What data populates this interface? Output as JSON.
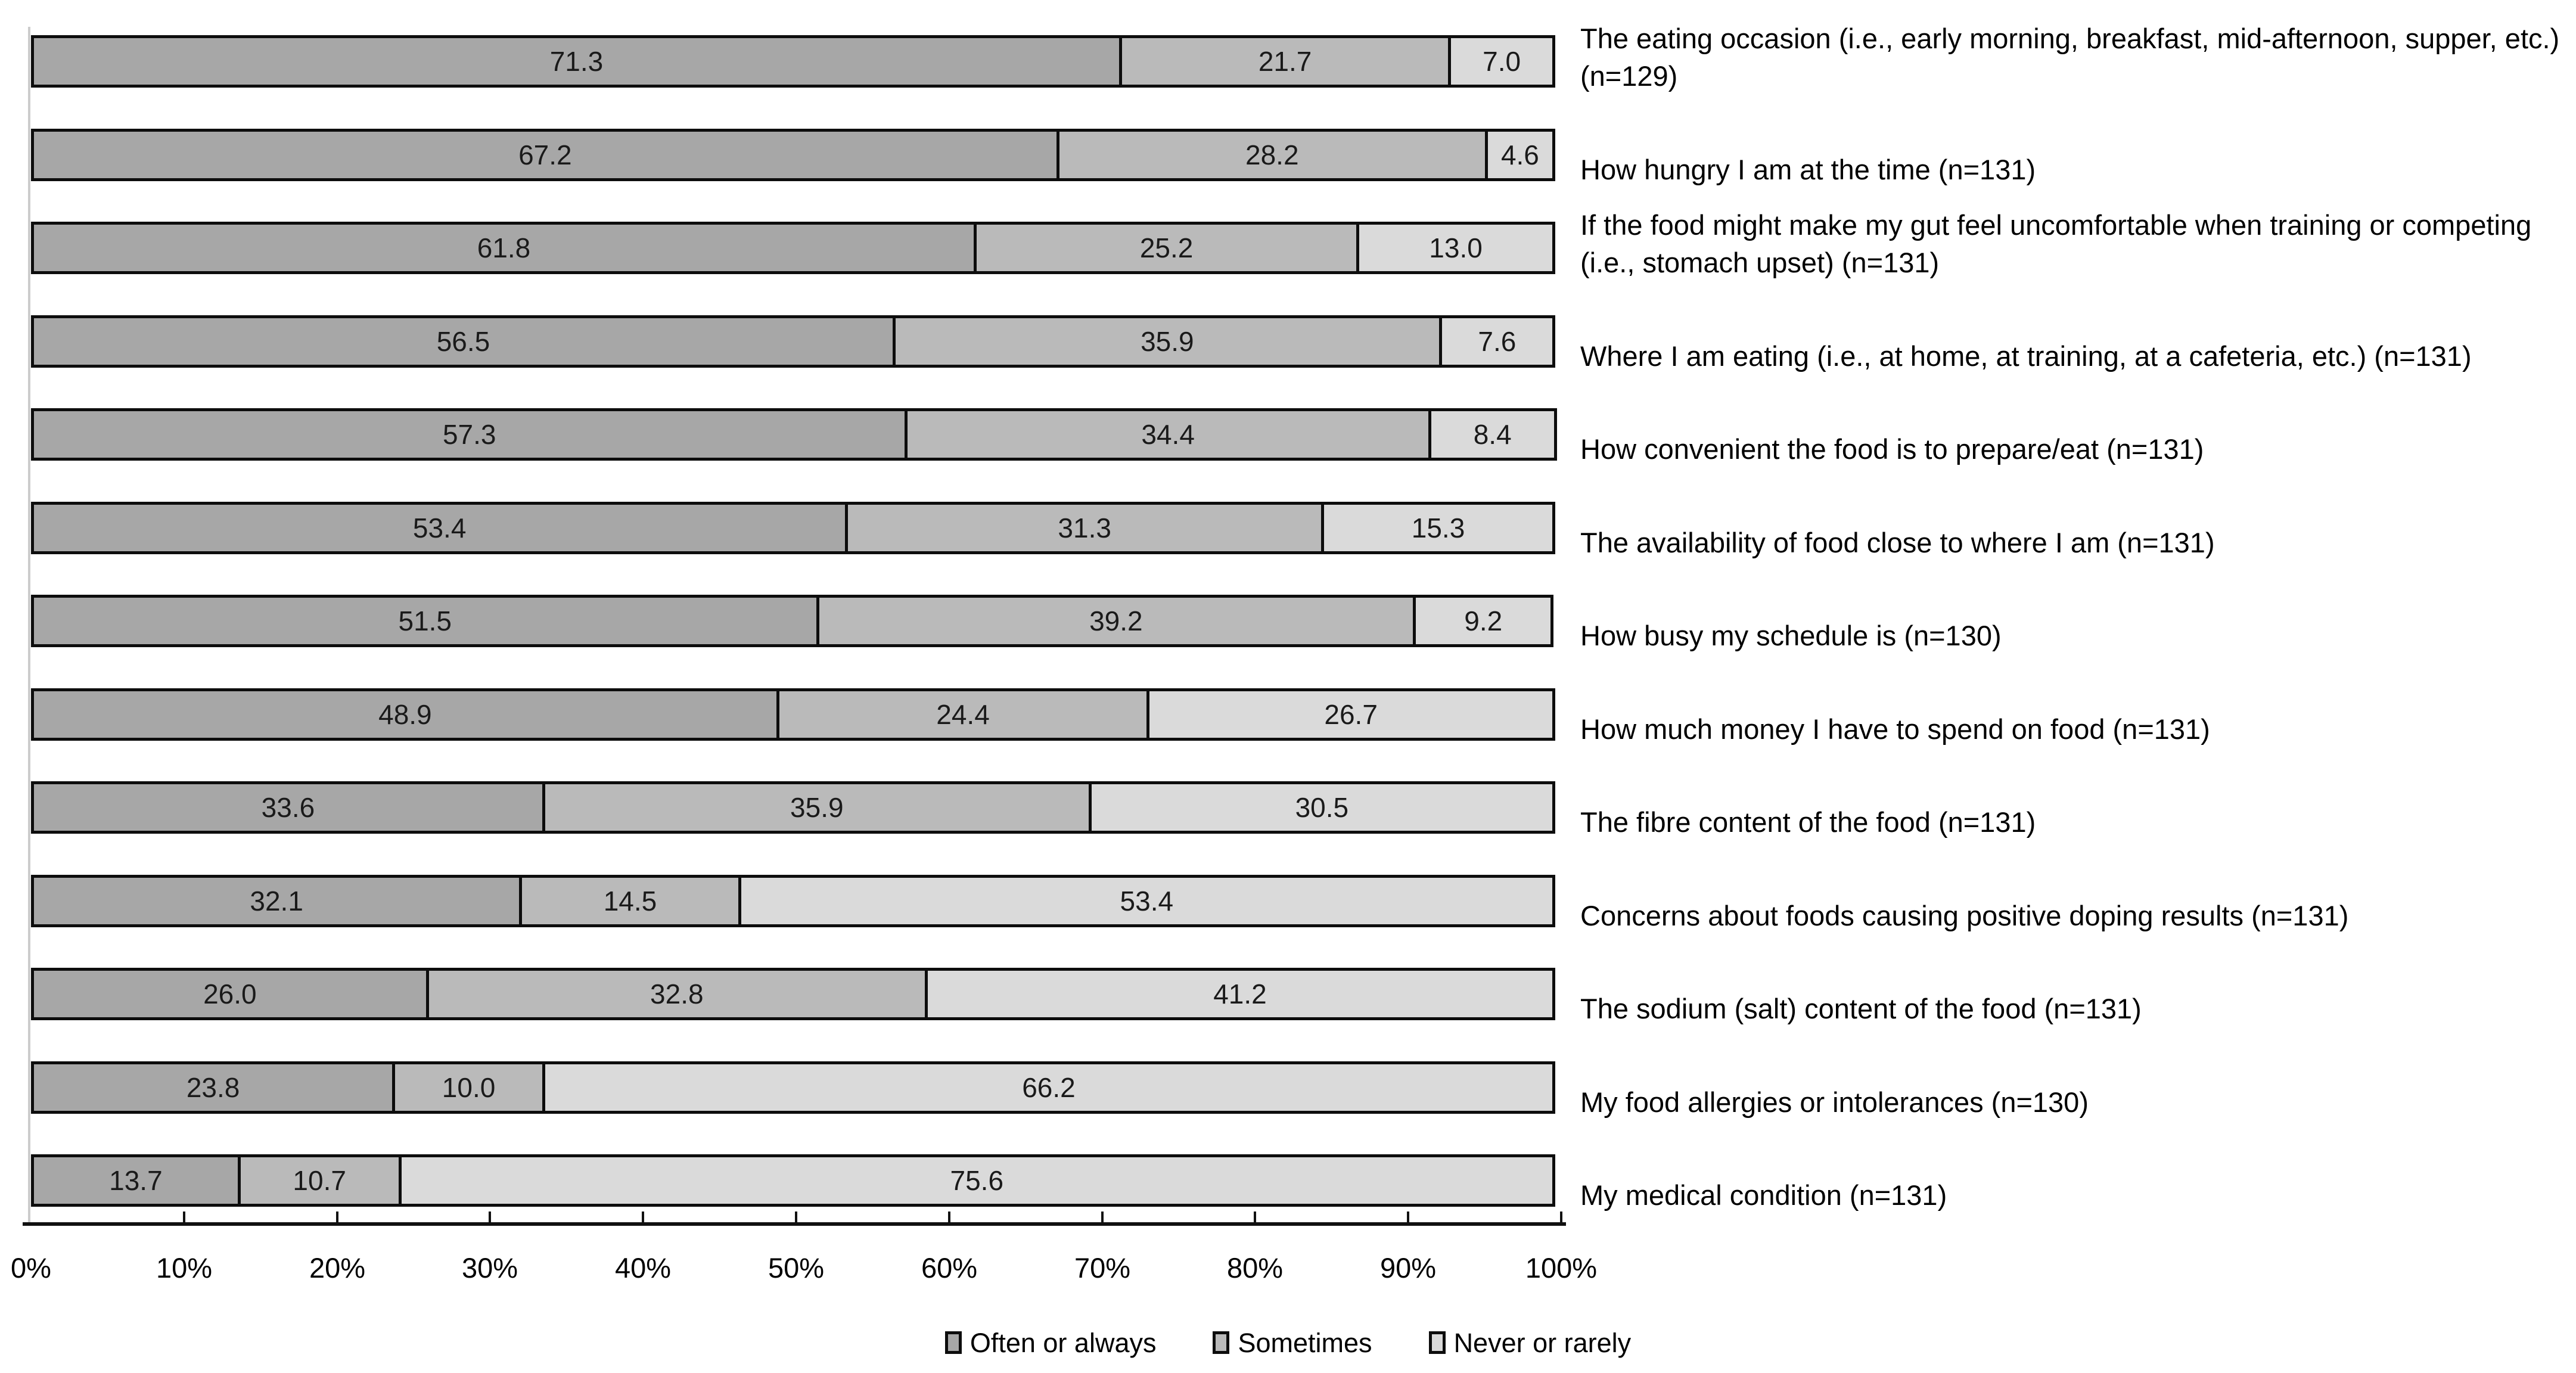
{
  "chart_data": {
    "type": "bar",
    "orientation": "horizontal",
    "stacked": true,
    "unit": "percent",
    "title": "",
    "xlabel": "",
    "ylabel": "",
    "xlim": [
      0,
      100
    ],
    "x_tick_labels": [
      "0%",
      "10%",
      "20%",
      "30%",
      "40%",
      "50%",
      "60%",
      "70%",
      "80%",
      "90%",
      "100%"
    ],
    "grid": false,
    "legend_position": "bottom",
    "value_label_decimals": 1,
    "categories": [
      "The eating occasion (i.e., early morning, breakfast, mid-afternoon, supper, etc.) (n=129)",
      "How hungry I am at the time (n=131)",
      "If the food might make my gut feel uncomfortable when training or competing (i.e., stomach upset) (n=131)",
      "Where I am eating (i.e., at home, at training, at a cafeteria, etc.) (n=131)",
      "How convenient the food is to prepare/eat (n=131)",
      "The availability of food close to where I am (n=131)",
      "How busy my schedule is (n=130)",
      "How much money I have to spend on food (n=131)",
      "The fibre content of the food (n=131)",
      "Concerns about foods causing positive doping results (n=131)",
      "The sodium (salt) content of the food (n=131)",
      "My food allergies or intolerances (n=130)",
      "My medical condition (n=131)"
    ],
    "series": [
      {
        "name": "Often or always",
        "color": "#a7a7a7",
        "values": [
          71.3,
          67.2,
          61.8,
          56.5,
          57.3,
          53.4,
          51.5,
          48.9,
          33.6,
          32.1,
          26.0,
          23.8,
          13.7
        ]
      },
      {
        "name": "Sometimes",
        "color": "#bababa",
        "values": [
          21.7,
          28.2,
          25.2,
          35.9,
          34.4,
          31.3,
          39.2,
          24.4,
          35.9,
          14.5,
          32.8,
          10.0,
          10.7
        ]
      },
      {
        "name": "Never or rarely",
        "color": "#dadada",
        "values": [
          7.0,
          4.6,
          13.0,
          7.6,
          8.4,
          15.3,
          9.2,
          26.7,
          30.5,
          53.4,
          41.2,
          66.2,
          75.6
        ]
      }
    ]
  },
  "colors": {
    "bar_border": "#0d0d0d",
    "axis_line": "#111111",
    "y_axis_line": "#cccccc",
    "text": "#000000",
    "background": "#ffffff"
  }
}
